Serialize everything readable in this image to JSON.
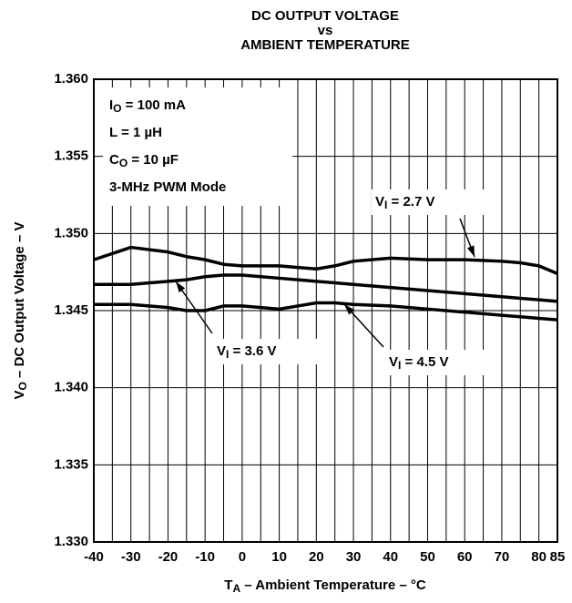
{
  "chart_data": {
    "type": "line",
    "title": [
      "DC OUTPUT VOLTAGE",
      "vs",
      "AMBIENT TEMPERATURE"
    ],
    "xlabel": [
      "T",
      "A",
      " – Ambient Temperature – °C"
    ],
    "ylabel": [
      "V",
      "O",
      " – DC Output Voltage – V"
    ],
    "annotations": [
      [
        "I",
        "O",
        " = 100 mA"
      ],
      [
        "L = 1 µH"
      ],
      [
        "C",
        "O",
        " = 10 µF"
      ],
      [
        "3-MHz PWM Mode"
      ]
    ],
    "x": [
      -40,
      -30,
      -20,
      -15,
      -10,
      -5,
      0,
      10,
      15,
      20,
      25,
      30,
      40,
      50,
      60,
      70,
      75,
      80,
      85
    ],
    "series": [
      {
        "name": [
          "V",
          "I",
          " = 2.7 V"
        ],
        "color": "#000000",
        "values": [
          1.3483,
          1.3491,
          1.3488,
          1.3485,
          1.3483,
          1.348,
          1.3479,
          1.3479,
          1.3478,
          1.3477,
          1.3479,
          1.3482,
          1.3484,
          1.3483,
          1.3483,
          1.3482,
          1.3481,
          1.3479,
          1.3474
        ]
      },
      {
        "name": [
          "V",
          "I",
          " = 3.6 V"
        ],
        "color": "#000000",
        "values": [
          1.3467,
          1.3467,
          1.3469,
          1.347,
          1.3472,
          1.3473,
          1.3473,
          1.3471,
          1.347,
          1.3469,
          1.3468,
          1.3467,
          1.3465,
          1.3463,
          1.3461,
          1.3459,
          1.3458,
          1.3457,
          1.3456
        ]
      },
      {
        "name": [
          "V",
          "I",
          " = 4.5 V"
        ],
        "color": "#000000",
        "values": [
          1.3454,
          1.3454,
          1.3452,
          1.345,
          1.345,
          1.3453,
          1.3453,
          1.3451,
          1.3453,
          1.3455,
          1.3455,
          1.3454,
          1.3453,
          1.3451,
          1.3449,
          1.3447,
          1.3446,
          1.3445,
          1.3444
        ]
      }
    ],
    "xlim": [
      -40,
      85
    ],
    "xticks": [
      -40,
      -30,
      -20,
      -10,
      0,
      10,
      20,
      30,
      40,
      50,
      60,
      70,
      80,
      85
    ],
    "ylim": [
      1.33,
      1.36
    ],
    "yticks": [
      {
        "value": 1.33,
        "label": "1.330"
      },
      1.335,
      {
        "value": 1.34,
        "label": "1.340"
      },
      1.345,
      {
        "value": 1.35,
        "label": "1.350"
      },
      1.355,
      {
        "value": 1.36,
        "label": "1.360"
      }
    ],
    "grid": true
  }
}
